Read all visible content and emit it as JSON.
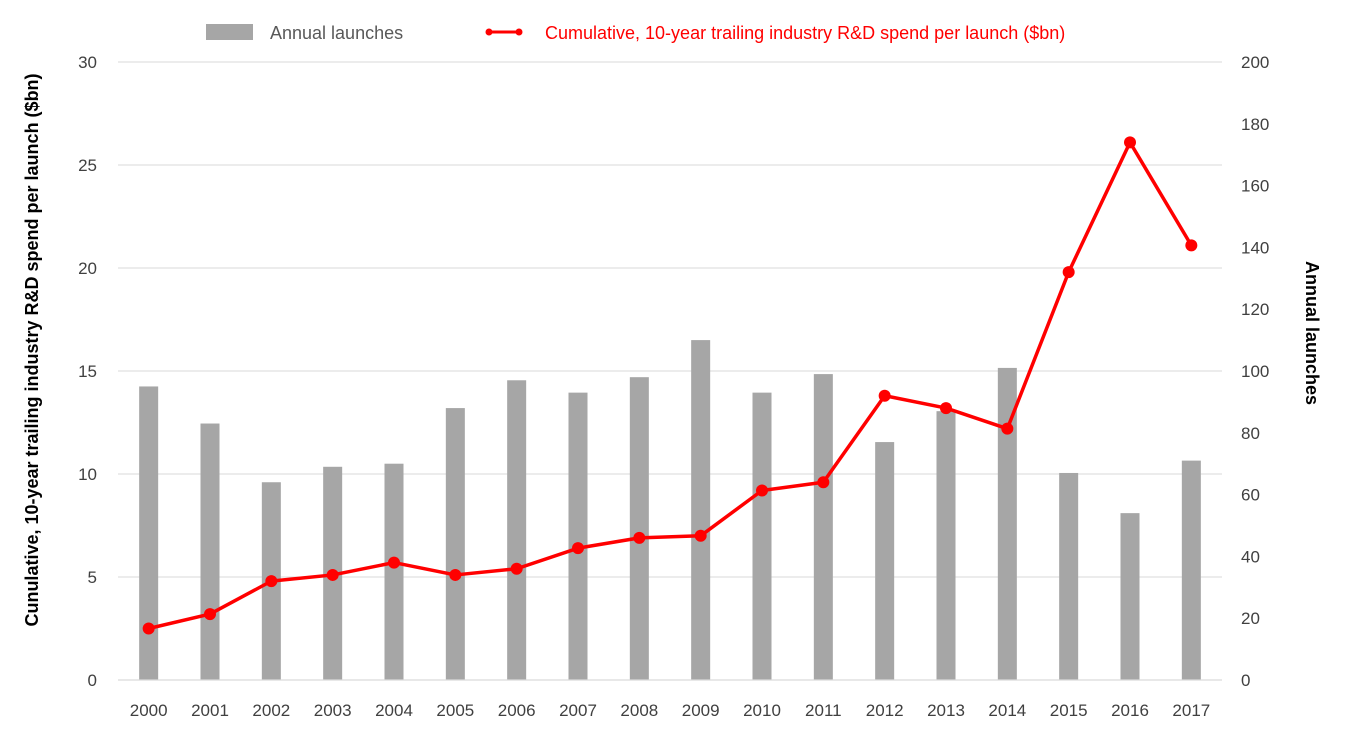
{
  "chart_data": {
    "type": "bar",
    "categories": [
      "2000",
      "2001",
      "2002",
      "2003",
      "2004",
      "2005",
      "2006",
      "2007",
      "2008",
      "2009",
      "2010",
      "2011",
      "2012",
      "2013",
      "2014",
      "2015",
      "2016",
      "2017"
    ],
    "series": [
      {
        "name": "Annual launches",
        "type": "bar",
        "axis": "right",
        "color": "#a6a6a6",
        "values": [
          95,
          83,
          64,
          69,
          70,
          88,
          97,
          93,
          98,
          110,
          93,
          99,
          77,
          87,
          101,
          67,
          54,
          71
        ]
      },
      {
        "name": "Cumulative, 10-year trailing industry R&D spend per launch ($bn)",
        "type": "line",
        "axis": "left",
        "color": "#ff0000",
        "values": [
          2.5,
          3.2,
          4.8,
          5.1,
          5.7,
          5.1,
          5.4,
          6.4,
          6.9,
          7.0,
          9.2,
          9.6,
          13.8,
          13.2,
          12.2,
          19.8,
          26.1,
          21.1
        ]
      }
    ],
    "ylabel": "Cunulative, 10-year trailing industry R&D spend per launch ($bn)",
    "y2label": "Annual launches",
    "ylim": [
      0,
      30
    ],
    "y2lim": [
      0,
      200
    ],
    "yticks": [
      "0",
      "5",
      "10",
      "15",
      "20",
      "25",
      "30"
    ],
    "y2ticks": [
      "0",
      "20",
      "40",
      "60",
      "80",
      "100",
      "120",
      "140",
      "160",
      "180",
      "200"
    ],
    "grid": true,
    "legend_position": "top"
  }
}
